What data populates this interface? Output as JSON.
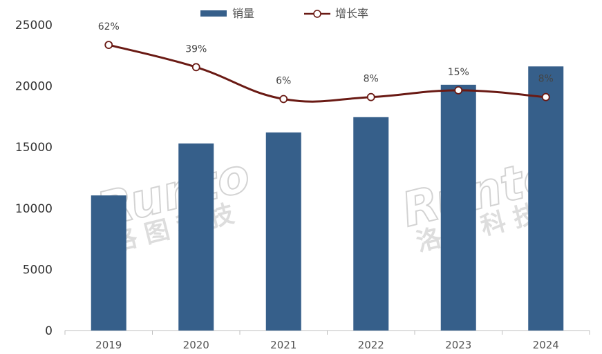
{
  "chart_data": {
    "type": "bar+line",
    "categories": [
      "2019",
      "2020",
      "2021",
      "2022",
      "2023",
      "2024"
    ],
    "series": [
      {
        "name": "销量",
        "type": "bar",
        "axis": "left",
        "values": [
          11050,
          15300,
          16200,
          17450,
          20100,
          21600
        ],
        "color": "#365f8a"
      },
      {
        "name": "增长率",
        "type": "line",
        "axis": "right",
        "values": [
          62,
          39,
          6,
          8,
          15,
          8
        ],
        "labels": [
          "62%",
          "39%",
          "6%",
          "8%",
          "15%",
          "8%"
        ],
        "color": "#6a1a14"
      }
    ],
    "y_ticks": [
      "0",
      "5000",
      "10000",
      "15000",
      "20000",
      "25000"
    ],
    "ylim": [
      0,
      25000
    ],
    "legend_position": "top-center",
    "grid": false
  },
  "watermark": {
    "brand": "Runto",
    "cn": "洛图科技"
  },
  "colors": {
    "bar": "#365f8a",
    "line": "#6a1a14",
    "axis": "#bfbfbf",
    "watermark": "#c9c9c9"
  }
}
